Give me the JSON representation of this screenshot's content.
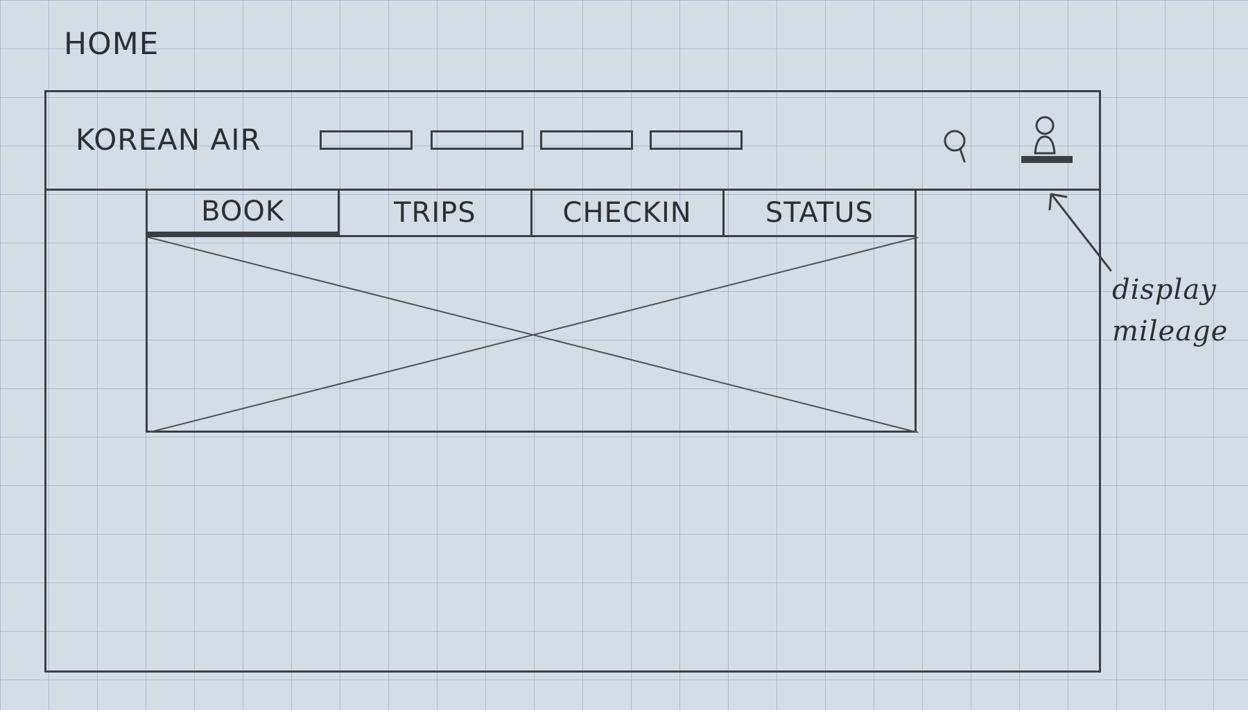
{
  "sketch": {
    "page_title": "HOME",
    "header": {
      "brand": "KOREAN AIR",
      "nav_placeholders": 4,
      "search_icon": "search-icon",
      "user_icon": "user-profile-icon"
    },
    "tabs": [
      {
        "label": "BOOK",
        "active": true
      },
      {
        "label": "TRIPS",
        "active": false
      },
      {
        "label": "CHECKIN",
        "active": false
      },
      {
        "label": "STATUS",
        "active": false
      }
    ],
    "content_placeholder": "image-placeholder",
    "annotation": {
      "line1": "display",
      "line2": "mileage"
    }
  }
}
